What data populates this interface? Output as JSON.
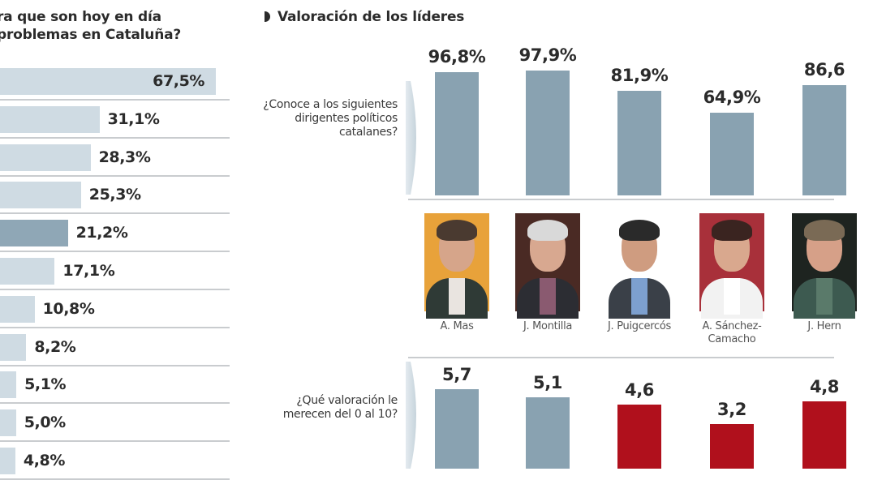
{
  "left_panel": {
    "title_line1": "ra que son hoy en día",
    "title_line2": "problemas en Cataluña?"
  },
  "right_panel": {
    "title": "Valoración de los líderes",
    "question_known": "¿Conoce a los siguientes dirigentes políticos catalanes?",
    "question_rating": "¿Qué valoración le merecen del 0 al 10?"
  },
  "leaders": [
    {
      "name": "A. Mas",
      "name_line2": ""
    },
    {
      "name": "J. Montilla",
      "name_line2": ""
    },
    {
      "name": "J. Puigcercós",
      "name_line2": ""
    },
    {
      "name": "A. Sánchez-",
      "name_line2": "Camacho"
    },
    {
      "name": "J. Hern",
      "name_line2": ""
    }
  ],
  "colors": {
    "bar_light": "#cfdbe3",
    "bar_highlight": "#8fa7b6",
    "bar_blue": "#89a2b1",
    "bar_red": "#b0101c",
    "separator": "#c9cccf",
    "text": "#2b2b2b"
  },
  "chart_data": [
    {
      "type": "bar",
      "orientation": "horizontal",
      "title": "…ra que son hoy en día …problemas en Cataluña?",
      "categories": [],
      "values": [
        67.5,
        31.1,
        28.3,
        25.3,
        21.2,
        17.1,
        10.8,
        8.2,
        5.1,
        5.0,
        4.8
      ],
      "labels": [
        "67,5%",
        "31,1%",
        "28,3%",
        "25,3%",
        "21,2%",
        "17,1%",
        "10,8%",
        "8,2%",
        "5,1%",
        "5,0%",
        "4,8%"
      ],
      "highlighted_index": 4,
      "xlim": [
        0,
        70
      ],
      "unit": "%"
    },
    {
      "type": "bar",
      "orientation": "vertical",
      "title": "¿Conoce a los siguientes dirigentes políticos catalanes?",
      "categories": [
        "A. Mas",
        "J. Montilla",
        "J. Puigcercós",
        "A. Sánchez-Camacho",
        "J. Hern"
      ],
      "values": [
        96.8,
        97.9,
        81.9,
        64.9,
        86.6
      ],
      "labels": [
        "96,8%",
        "97,9%",
        "81,9%",
        "64,9%",
        "86,6"
      ],
      "ylim": [
        0,
        100
      ],
      "unit": "%"
    },
    {
      "type": "bar",
      "orientation": "vertical",
      "title": "¿Qué valoración le merecen del 0 al 10?",
      "categories": [
        "A. Mas",
        "J. Montilla",
        "J. Puigcercós",
        "A. Sánchez-Camacho",
        "J. Hern"
      ],
      "values": [
        5.7,
        5.1,
        4.6,
        3.2,
        4.8
      ],
      "labels": [
        "5,7",
        "5,1",
        "4,6",
        "3,2",
        "4,8"
      ],
      "bar_colors": [
        "blue",
        "blue",
        "red",
        "red",
        "red"
      ],
      "ylim": [
        0,
        10
      ]
    }
  ]
}
